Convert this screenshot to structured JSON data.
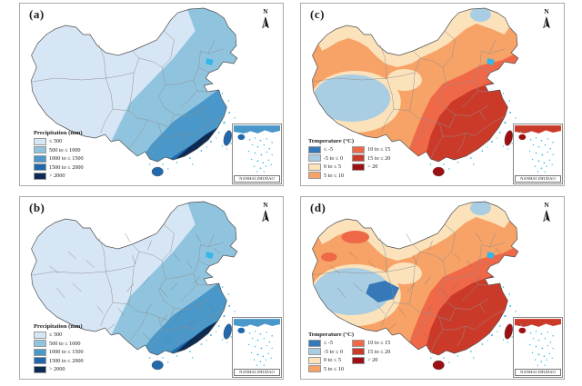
{
  "colors": {
    "precip": [
      "#d7e6f5",
      "#90c4de",
      "#4a97c9",
      "#2268ad",
      "#0d2b52"
    ],
    "temp": [
      "#3579b8",
      "#a9cee3",
      "#fbe2ba",
      "#f7a267",
      "#ef6848",
      "#cb3a29",
      "#9c1013"
    ],
    "island_dots": "#35b6e9",
    "province_border": "#8f8f8f",
    "county_border": "#6f6f6f",
    "outline": "#4d4d4d",
    "frame": "#a9a9a9"
  },
  "panels": [
    {
      "id": "a",
      "label": "(a)",
      "north_label": "N",
      "inset_label": "NANHAI ZHUDAO",
      "legend": {
        "title": "Precipitation (mm)",
        "entries": [
          {
            "label": "≤ 500",
            "color": "#d7e6f5"
          },
          {
            "label": "500 to ≤ 1000",
            "color": "#90c4de"
          },
          {
            "label": "1000 to ≤ 1500",
            "color": "#4a97c9"
          },
          {
            "label": "1500 to ≤ 2000",
            "color": "#2268ad"
          },
          {
            "label": "> 2000",
            "color": "#0d2b52"
          }
        ]
      }
    },
    {
      "id": "b",
      "label": "(b)",
      "north_label": "N",
      "inset_label": "NANHAI ZHUDAO",
      "legend": {
        "title": "Precipitation (mm)",
        "entries": [
          {
            "label": "≤ 500",
            "color": "#d7e6f5"
          },
          {
            "label": "500 to ≤ 1000",
            "color": "#90c4de"
          },
          {
            "label": "1000 to ≤ 1500",
            "color": "#4a97c9"
          },
          {
            "label": "1500 to ≤ 2000",
            "color": "#2268ad"
          },
          {
            "label": "> 2000",
            "color": "#0d2b52"
          }
        ]
      }
    },
    {
      "id": "c",
      "label": "(c)",
      "north_label": "N",
      "inset_label": "NANHAI ZHUDAO",
      "legend": {
        "title": "Temperature (°C)",
        "entries": [
          {
            "label": "≤ -5",
            "color": "#3579b8"
          },
          {
            "label": "-5 to ≤ 0",
            "color": "#a9cee3"
          },
          {
            "label": "0 to ≤ 5",
            "color": "#fbe2ba"
          },
          {
            "label": "5 to ≤ 10",
            "color": "#f7a267"
          },
          {
            "label": "10 to ≤ 15",
            "color": "#ef6848"
          },
          {
            "label": "15 to ≤ 20",
            "color": "#cb3a29"
          },
          {
            "label": "> 20",
            "color": "#9c1013"
          }
        ]
      }
    },
    {
      "id": "d",
      "label": "(d)",
      "north_label": "N",
      "inset_label": "NANHAI ZHUDAO",
      "legend": {
        "title": "Temperature (°C)",
        "entries": [
          {
            "label": "≤ -5",
            "color": "#3579b8"
          },
          {
            "label": "-5 to ≤ 0",
            "color": "#a9cee3"
          },
          {
            "label": "0 to ≤ 5",
            "color": "#fbe2ba"
          },
          {
            "label": "5 to ≤ 10",
            "color": "#f7a267"
          },
          {
            "label": "10 to ≤ 15",
            "color": "#ef6848"
          },
          {
            "label": "15 to ≤ 20",
            "color": "#cb3a29"
          },
          {
            "label": "> 20",
            "color": "#9c1013"
          }
        ]
      }
    }
  ]
}
